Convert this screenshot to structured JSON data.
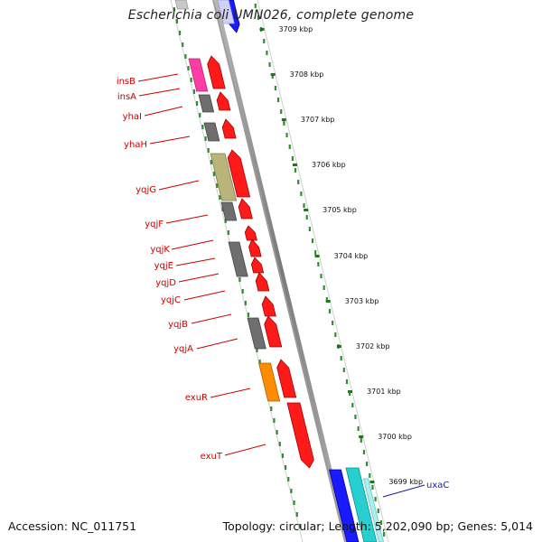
{
  "title": "Escherichia coli UMN026, complete genome",
  "footer": {
    "accession": "Accession: NC_011751",
    "summary": "Topology: circular; Length: 5,202,090 bp; Genes: 5,014"
  },
  "colors": {
    "gene_label": "#cc0000",
    "gene_label_forward": "#1a1aaa",
    "scale_tick": "#1a7a1a",
    "backbone": "#8a8a8a"
  },
  "scale_ticks": [
    "3709 kbp",
    "3708 kbp",
    "3707 kbp",
    "3706 kbp",
    "3705 kbp",
    "3704 kbp",
    "3703 kbp",
    "3702 kbp",
    "3701 kbp",
    "3700 kbp",
    "3699 kbp"
  ],
  "gene_labels": [
    "insB",
    "insA",
    "yhaI",
    "yhaH",
    "yqjG",
    "yqjF",
    "yqjK",
    "yqjE",
    "yqjD",
    "yqjC",
    "yqjB",
    "yqjA",
    "exuR",
    "exuT",
    "uxaC"
  ]
}
